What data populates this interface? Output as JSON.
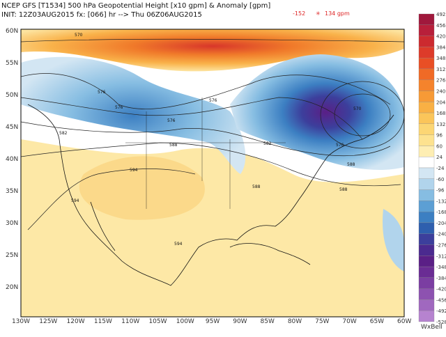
{
  "header": {
    "line1": "NCEP GFS [T1534] 500 hPa Geopotential Height [x10 gpm] & Anomaly [gpm]",
    "line2": "INIT: 12Z03AUG2015 fx: [066] hr --> Thu 06Z06AUG2015",
    "min": "-152",
    "max": "134 gpm"
  },
  "colorbar": {
    "labels": [
      "492",
      "456",
      "420",
      "384",
      "348",
      "312",
      "276",
      "240",
      "204",
      "168",
      "132",
      "96",
      "60",
      "24",
      "-24",
      "-60",
      "-96",
      "-132",
      "-168",
      "-204",
      "-240",
      "-276",
      "-312",
      "-348",
      "-384",
      "-420",
      "-456",
      "-492",
      "-528"
    ]
  },
  "lat_labels": [
    "60N",
    "55N",
    "50N",
    "45N",
    "40N",
    "35N",
    "30N",
    "25N",
    "20N"
  ],
  "lon_labels": [
    "130W",
    "125W",
    "120W",
    "115W",
    "110W",
    "105W",
    "100W",
    "95W",
    "90W",
    "85W",
    "80W",
    "75W",
    "70W",
    "65W",
    "60W"
  ],
  "contour_labels": [
    "570",
    "576",
    "576",
    "576",
    "582",
    "582",
    "588",
    "588",
    "594",
    "594",
    "594",
    "588",
    "588",
    "576",
    "570",
    "576"
  ],
  "credit": "WxBell"
}
